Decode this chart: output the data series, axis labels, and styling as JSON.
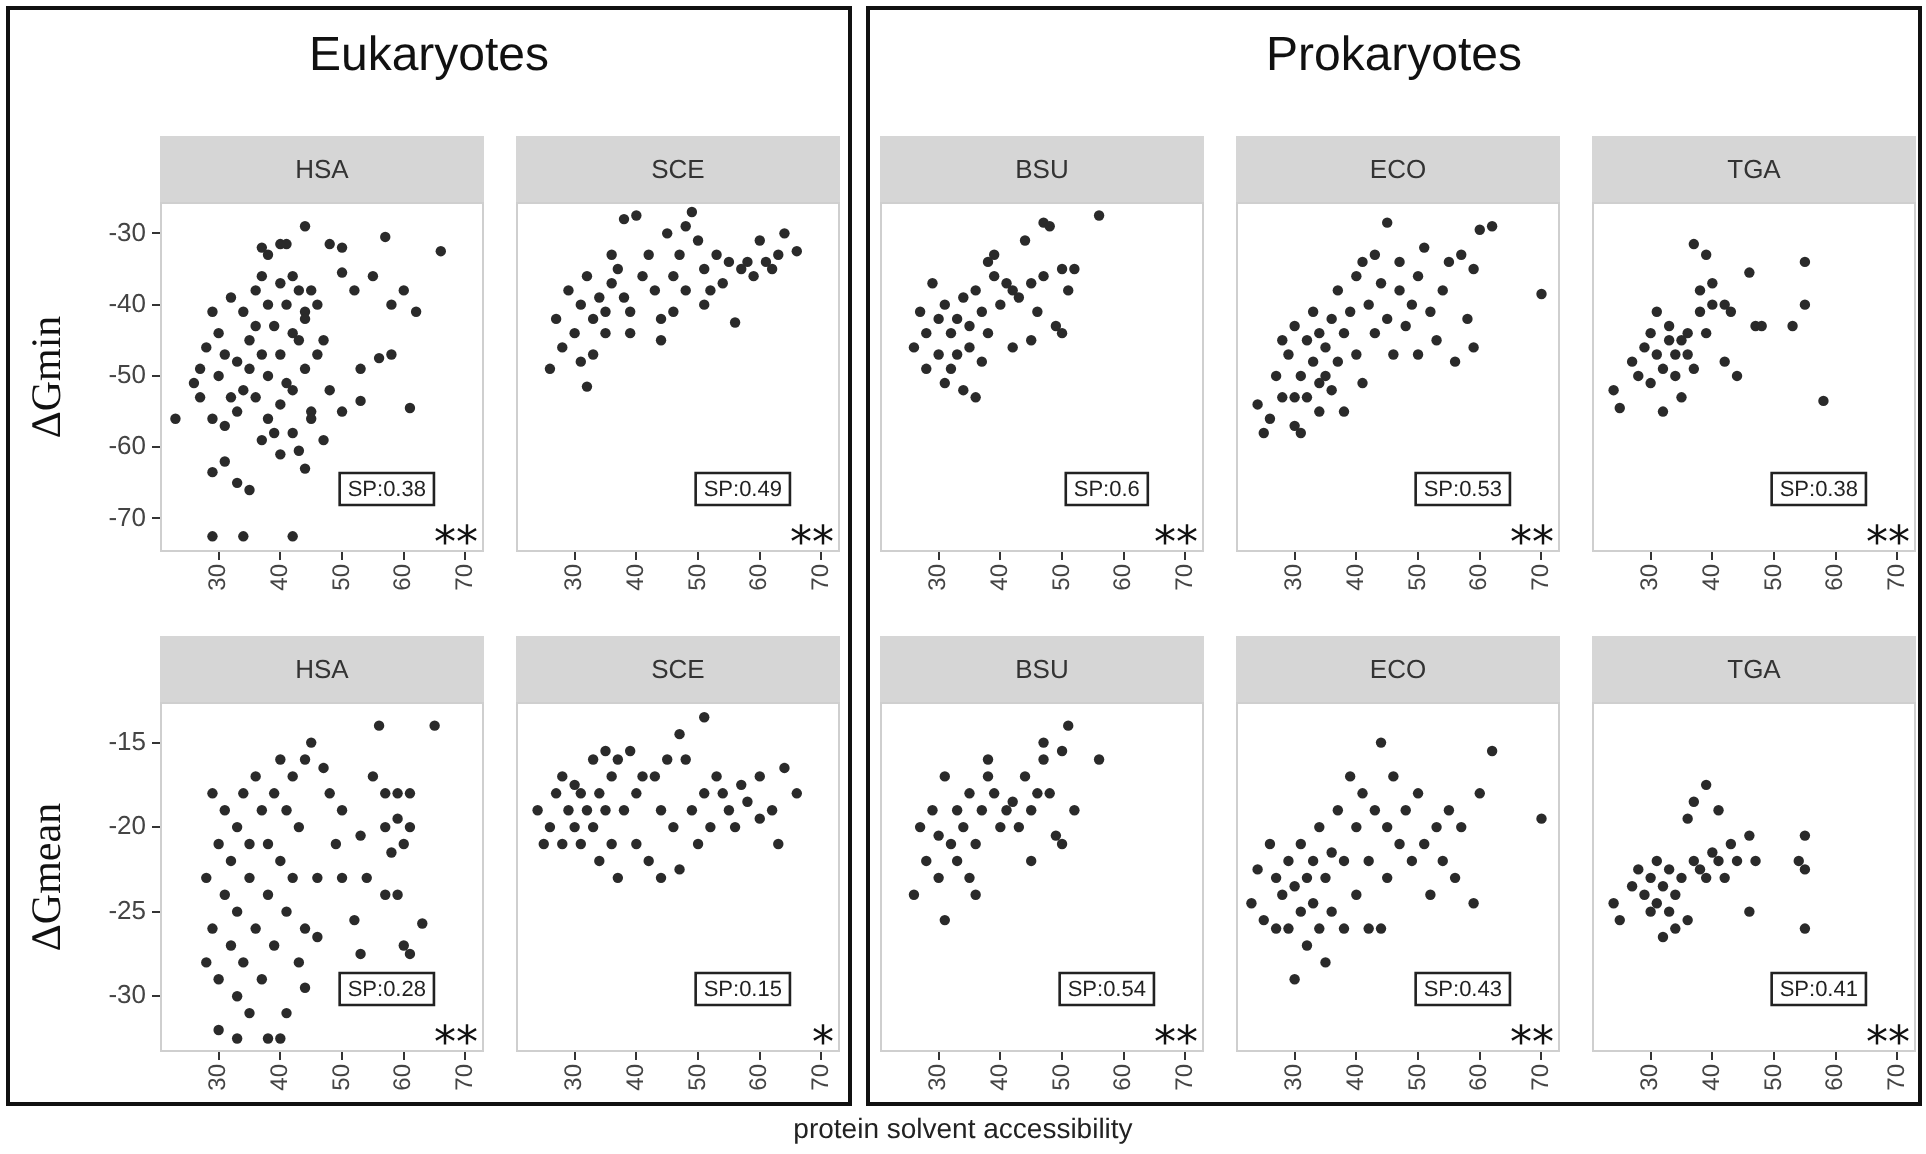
{
  "chart_data": [
    {
      "type": "scatter",
      "title": "Eukaryotes",
      "subtitle": "HSA",
      "ylabel": "ΔGmin",
      "annotations": [
        "SP:0.38",
        "**"
      ],
      "marker": "circle",
      "xlim": [
        20.5,
        73
      ],
      "xticks": [
        30,
        40,
        50,
        60,
        70
      ],
      "ylim": [
        -74.7,
        -25.6
      ],
      "yticks": [
        -70,
        -60,
        -50,
        -40,
        -30
      ],
      "series": [
        {
          "color": "#2a2a2a",
          "x": [
            29,
            30,
            31,
            30,
            32,
            29,
            31,
            33,
            34,
            33,
            35,
            34,
            36,
            37,
            38,
            36,
            37,
            38,
            36,
            38,
            39,
            40,
            41,
            40,
            42,
            41,
            40,
            42,
            43,
            44,
            43,
            44,
            42,
            45,
            39,
            35,
            32,
            28,
            27,
            37,
            40,
            45,
            46,
            29,
            34,
            42,
            29,
            33,
            35,
            44,
            23,
            44,
            48,
            50,
            57,
            66,
            62,
            60,
            58,
            61,
            58,
            56,
            53,
            50,
            53,
            48,
            46,
            55,
            52,
            47,
            44,
            50,
            41,
            38,
            43,
            40,
            37,
            31,
            26,
            27,
            47,
            45,
            42
          ],
          "values": [
            -41,
            -44,
            -47,
            -50,
            -53,
            -56,
            -57,
            -55,
            -52,
            -48,
            -45,
            -41,
            -38,
            -36,
            -40,
            -43,
            -47,
            -50,
            -53,
            -56,
            -58,
            -54,
            -51,
            -47,
            -44,
            -40,
            -37,
            -36,
            -38,
            -41,
            -45,
            -49,
            -52,
            -55,
            -43,
            -49,
            -39,
            -46,
            -53,
            -32,
            -31.5,
            -38,
            -40,
            -72.5,
            -72.5,
            -72.5,
            -63.5,
            -65,
            -66,
            -63,
            -56,
            -29,
            -31.5,
            -32,
            -30.5,
            -32.5,
            -41,
            -38,
            -40,
            -54.5,
            -47,
            -47.5,
            -49,
            -55,
            -53.5,
            -52,
            -47,
            -36,
            -38,
            -45,
            -42,
            -35.5,
            -31.5,
            -33,
            -60.5,
            -61,
            -59,
            -62,
            -51,
            -49,
            -59,
            -56,
            -58
          ]
        }
      ]
    },
    {
      "type": "scatter",
      "subtitle": "SCE",
      "annotations": [
        "SP:0.49",
        "**"
      ],
      "marker": "circle",
      "tick_labels": "x",
      "xlim": [
        20.5,
        73
      ],
      "xticks": [
        30,
        40,
        50,
        60,
        70
      ],
      "ylim": [
        -74.7,
        -25.6
      ],
      "yticks": [
        -70,
        -60,
        -50,
        -40,
        -30
      ],
      "series": [
        {
          "color": "#2a2a2a",
          "x": [
            26,
            27,
            28,
            29,
            30,
            31,
            32,
            31,
            32,
            33,
            33,
            34,
            35,
            36,
            35,
            36,
            37,
            38,
            39,
            38,
            40,
            39,
            41,
            42,
            43,
            44,
            44,
            45,
            46,
            47,
            48,
            49,
            48,
            50,
            51,
            51,
            52,
            53,
            54,
            55,
            56,
            57,
            58,
            60,
            61,
            62,
            63,
            64,
            66,
            59,
            46
          ],
          "values": [
            -49,
            -42,
            -46,
            -38,
            -44,
            -40,
            -36,
            -48,
            -51.5,
            -47,
            -42,
            -39,
            -41,
            -37,
            -44,
            -33,
            -35,
            -39,
            -41,
            -28,
            -27.5,
            -44,
            -36,
            -33,
            -38,
            -42,
            -45,
            -30,
            -36,
            -33,
            -29,
            -27,
            -38,
            -31,
            -35,
            -40,
            -38,
            -33,
            -37,
            -34,
            -42.5,
            -35,
            -34,
            -31,
            -34,
            -35,
            -33,
            -30,
            -32.5,
            -36,
            -41
          ]
        }
      ]
    },
    {
      "type": "scatter",
      "subtitle": "BSU",
      "annotations": [
        "SP:0.6",
        "**"
      ],
      "marker": "circle",
      "tick_labels": "x",
      "xlim": [
        20.5,
        73
      ],
      "xticks": [
        30,
        40,
        50,
        60,
        70
      ],
      "ylim": [
        -74.7,
        -25.6
      ],
      "yticks": [
        -70,
        -60,
        -50,
        -40,
        -30
      ],
      "series": [
        {
          "color": "#2a2a2a",
          "x": [
            26,
            27,
            28,
            28,
            29,
            30,
            30,
            31,
            31,
            32,
            33,
            33,
            34,
            34,
            35,
            35,
            36,
            36,
            37,
            38,
            38,
            39,
            39,
            40,
            41,
            42,
            42,
            43,
            44,
            45,
            45,
            46,
            47,
            47,
            48,
            49,
            50,
            50,
            51,
            52,
            56,
            32,
            37
          ],
          "values": [
            -46,
            -41,
            -44,
            -49,
            -37,
            -42,
            -47,
            -40,
            -51,
            -44,
            -42,
            -47,
            -39,
            -52,
            -43,
            -46,
            -38,
            -53,
            -41,
            -34,
            -44,
            -36,
            -33,
            -40,
            -37,
            -38,
            -46,
            -39,
            -31,
            -37,
            -45,
            -41,
            -36,
            -28.5,
            -29,
            -43,
            -44,
            -35,
            -38,
            -35,
            -27.5,
            -49,
            -48
          ]
        }
      ]
    },
    {
      "type": "scatter",
      "title": "Prokaryotes",
      "subtitle": "ECO",
      "annotations": [
        "SP:0.53",
        "**"
      ],
      "marker": "circle",
      "tick_labels": "x",
      "xlim": [
        20.5,
        73
      ],
      "xticks": [
        30,
        40,
        50,
        60,
        70
      ],
      "ylim": [
        -74.7,
        -25.6
      ],
      "yticks": [
        -70,
        -60,
        -50,
        -40,
        -30
      ],
      "series": [
        {
          "color": "#2a2a2a",
          "x": [
            24,
            25,
            27,
            28,
            28,
            29,
            30,
            30,
            31,
            31,
            32,
            32,
            33,
            33,
            34,
            34,
            35,
            35,
            36,
            36,
            37,
            37,
            38,
            38,
            39,
            40,
            40,
            41,
            41,
            42,
            43,
            43,
            44,
            45,
            45,
            46,
            47,
            47,
            48,
            49,
            50,
            50,
            51,
            52,
            53,
            54,
            55,
            56,
            57,
            58,
            59,
            59,
            60,
            62,
            70,
            30,
            34,
            26
          ],
          "values": [
            -54,
            -58,
            -50,
            -45,
            -53,
            -47,
            -43,
            -57,
            -50,
            -58,
            -45,
            -53,
            -48,
            -41,
            -44,
            -55,
            -50,
            -46,
            -42,
            -52,
            -48,
            -38,
            -44,
            -55,
            -41,
            -36,
            -47,
            -34,
            -51,
            -40,
            -44,
            -33,
            -37,
            -28.5,
            -42,
            -47,
            -38,
            -34,
            -43,
            -40,
            -36,
            -47,
            -32,
            -41,
            -45,
            -38,
            -34,
            -48,
            -33,
            -42,
            -35,
            -46,
            -29.5,
            -29,
            -38.5,
            -53,
            -51,
            -56
          ]
        }
      ]
    },
    {
      "type": "scatter",
      "subtitle": "TGA",
      "annotations": [
        "SP:0.38",
        "**"
      ],
      "marker": "circle",
      "tick_labels": "x",
      "xlim": [
        20.5,
        73
      ],
      "xticks": [
        30,
        40,
        50,
        60,
        70
      ],
      "ylim": [
        -74.7,
        -25.6
      ],
      "yticks": [
        -70,
        -60,
        -50,
        -40,
        -30
      ],
      "series": [
        {
          "color": "#2a2a2a",
          "x": [
            24,
            25,
            27,
            28,
            29,
            30,
            30,
            31,
            31,
            32,
            32,
            33,
            33,
            34,
            34,
            35,
            35,
            36,
            37,
            37,
            38,
            38,
            39,
            39,
            40,
            42,
            42,
            43,
            44,
            46,
            47,
            48,
            53,
            55,
            55,
            58,
            36,
            40
          ],
          "values": [
            -52,
            -54.5,
            -48,
            -50,
            -46,
            -44,
            -51,
            -47,
            -41,
            -49,
            -55,
            -45,
            -43,
            -50,
            -47,
            -53,
            -45,
            -44,
            -31.5,
            -49,
            -41,
            -38,
            -33,
            -44,
            -40,
            -48,
            -40,
            -41,
            -50,
            -35.5,
            -43,
            -43,
            -43,
            -34,
            -40,
            -53.5,
            -47,
            -37
          ]
        }
      ]
    },
    {
      "type": "scatter",
      "subtitle": "HSA",
      "ylabel": "ΔGmean",
      "annotations": [
        "SP:0.28",
        "**"
      ],
      "marker": "circle",
      "xlim": [
        20.5,
        73
      ],
      "xticks": [
        30,
        40,
        50,
        60,
        70
      ],
      "ylim": [
        -33.3,
        -12.6
      ],
      "yticks": [
        -30,
        -25,
        -20,
        -15
      ],
      "series": [
        {
          "color": "#2a2a2a",
          "x": [
            28,
            30,
            33,
            38,
            40,
            41,
            44,
            46,
            52,
            53,
            57,
            59,
            60,
            61,
            63,
            58,
            60,
            57,
            59,
            61,
            55,
            57,
            59,
            61,
            56,
            65,
            45,
            47,
            48,
            50,
            49,
            50,
            53,
            54,
            46,
            29,
            28,
            29,
            30,
            30,
            31,
            31,
            32,
            32,
            33,
            33,
            34,
            34,
            35,
            35,
            36,
            36,
            37,
            37,
            38,
            38,
            39,
            39,
            40,
            40,
            41,
            41,
            42,
            42,
            43,
            43,
            44,
            44,
            33,
            35
          ],
          "values": [
            -28,
            -32,
            -32.5,
            -32.5,
            -32.5,
            -31,
            -29.5,
            -26.5,
            -25.5,
            -27.5,
            -24,
            -24,
            -27,
            -27.5,
            -25.7,
            -21.5,
            -21,
            -20,
            -19.5,
            -20,
            -17,
            -18,
            -18,
            -18,
            -14,
            -14,
            -15,
            -16.5,
            -18,
            -19,
            -21,
            -23,
            -20.5,
            -23,
            -23,
            -18,
            -23,
            -26,
            -21,
            -29,
            -24,
            -19,
            -27,
            -22,
            -20,
            -25,
            -28,
            -18,
            -23,
            -21,
            -26,
            -17,
            -19,
            -29,
            -24,
            -21,
            -18,
            -27,
            -16,
            -22,
            -25,
            -19,
            -17,
            -23,
            -28,
            -20,
            -26,
            -16,
            -30,
            -31
          ]
        }
      ]
    },
    {
      "type": "scatter",
      "subtitle": "SCE",
      "annotations": [
        "SP:0.15",
        "*"
      ],
      "marker": "circle",
      "tick_labels": "x",
      "xlim": [
        20.5,
        73
      ],
      "xticks": [
        30,
        40,
        50,
        60,
        70
      ],
      "ylim": [
        -33.3,
        -12.6
      ],
      "yticks": [
        -30,
        -25,
        -20,
        -15
      ],
      "series": [
        {
          "color": "#2a2a2a",
          "x": [
            24,
            25,
            26,
            27,
            28,
            28,
            29,
            30,
            30,
            31,
            31,
            32,
            33,
            33,
            34,
            34,
            35,
            35,
            36,
            36,
            37,
            37,
            38,
            39,
            40,
            40,
            41,
            42,
            43,
            44,
            44,
            45,
            46,
            47,
            47,
            48,
            49,
            50,
            51,
            51,
            52,
            53,
            54,
            55,
            56,
            57,
            58,
            60,
            60,
            62,
            63,
            64,
            66
          ],
          "values": [
            -19,
            -21,
            -20,
            -18,
            -17,
            -21,
            -19,
            -20,
            -17.5,
            -18,
            -21,
            -19,
            -16,
            -20,
            -18,
            -22,
            -15.5,
            -19,
            -17,
            -21,
            -23,
            -16,
            -19,
            -15.5,
            -18,
            -21,
            -17,
            -22,
            -17,
            -23,
            -19,
            -16,
            -20,
            -14.5,
            -22.5,
            -16,
            -19,
            -21,
            -13.5,
            -18,
            -20,
            -17,
            -18,
            -19,
            -20,
            -17.5,
            -18.5,
            -17,
            -19.5,
            -19,
            -21,
            -16.5,
            -18
          ]
        }
      ]
    },
    {
      "type": "scatter",
      "subtitle": "BSU",
      "xlabel": "protein solvent accessibility",
      "annotations": [
        "SP:0.54",
        "**"
      ],
      "marker": "circle",
      "tick_labels": "x",
      "xlim": [
        20.5,
        73
      ],
      "xticks": [
        30,
        40,
        50,
        60,
        70
      ],
      "ylim": [
        -33.3,
        -12.6
      ],
      "yticks": [
        -30,
        -25,
        -20,
        -15
      ],
      "series": [
        {
          "color": "#2a2a2a",
          "x": [
            26,
            27,
            28,
            29,
            30,
            30,
            31,
            31,
            32,
            33,
            33,
            34,
            35,
            35,
            36,
            36,
            37,
            38,
            38,
            39,
            40,
            41,
            42,
            43,
            44,
            45,
            45,
            46,
            47,
            47,
            48,
            49,
            50,
            50,
            51,
            52,
            56
          ],
          "values": [
            -24,
            -20,
            -22,
            -19,
            -23,
            -20.5,
            -17,
            -25.5,
            -21,
            -19,
            -22,
            -20,
            -18,
            -23,
            -21,
            -24,
            -19,
            -17,
            -16,
            -18,
            -20,
            -19,
            -18.5,
            -20,
            -17,
            -19,
            -22,
            -18,
            -16,
            -15,
            -18,
            -20.5,
            -15.5,
            -21,
            -14,
            -19,
            -16
          ]
        }
      ]
    },
    {
      "type": "scatter",
      "subtitle": "ECO",
      "annotations": [
        "SP:0.43",
        "**"
      ],
      "marker": "circle",
      "tick_labels": "x",
      "xlim": [
        20.5,
        73
      ],
      "xticks": [
        30,
        40,
        50,
        60,
        70
      ],
      "ylim": [
        -33.3,
        -12.6
      ],
      "yticks": [
        -30,
        -25,
        -20,
        -15
      ],
      "series": [
        {
          "color": "#2a2a2a",
          "x": [
            23,
            24,
            25,
            26,
            27,
            27,
            28,
            29,
            29,
            30,
            30,
            31,
            31,
            32,
            32,
            33,
            33,
            34,
            34,
            35,
            35,
            36,
            36,
            37,
            38,
            38,
            39,
            40,
            40,
            41,
            42,
            42,
            43,
            44,
            45,
            45,
            46,
            47,
            48,
            49,
            50,
            51,
            52,
            53,
            54,
            55,
            56,
            57,
            59,
            60,
            62,
            70,
            44
          ],
          "values": [
            -24.5,
            -22.5,
            -25.5,
            -21,
            -23,
            -26,
            -24,
            -22,
            -26,
            -23.5,
            -29,
            -21,
            -25,
            -23,
            -27,
            -22,
            -24.5,
            -20,
            -26,
            -23,
            -28,
            -21.5,
            -25,
            -19,
            -22,
            -26,
            -17,
            -20,
            -24,
            -18,
            -22,
            -26,
            -19,
            -15,
            -20,
            -23,
            -17,
            -21,
            -19,
            -22,
            -18,
            -21,
            -24,
            -20,
            -22,
            -19,
            -23,
            -20,
            -24.5,
            -18,
            -15.5,
            -19.5,
            -26
          ]
        }
      ]
    },
    {
      "type": "scatter",
      "subtitle": "TGA",
      "annotations": [
        "SP:0.41",
        "**"
      ],
      "marker": "circle",
      "tick_labels": "x",
      "xlim": [
        20.5,
        73
      ],
      "xticks": [
        30,
        40,
        50,
        60,
        70
      ],
      "ylim": [
        -33.3,
        -12.6
      ],
      "yticks": [
        -30,
        -25,
        -20,
        -15
      ],
      "series": [
        {
          "color": "#2a2a2a",
          "x": [
            24,
            25,
            27,
            28,
            29,
            30,
            30,
            31,
            31,
            32,
            33,
            33,
            34,
            34,
            35,
            36,
            37,
            37,
            38,
            39,
            39,
            40,
            41,
            41,
            42,
            43,
            44,
            46,
            46,
            47,
            54,
            55,
            55,
            55,
            36,
            32
          ],
          "values": [
            -24.5,
            -25.5,
            -23.5,
            -22.5,
            -24,
            -23,
            -25,
            -22,
            -24.5,
            -23.5,
            -22.5,
            -25,
            -24,
            -26,
            -23,
            -19.5,
            -22,
            -18.5,
            -22.5,
            -17.5,
            -23,
            -21.5,
            -19,
            -22,
            -23,
            -21,
            -22,
            -20.5,
            -25,
            -22,
            -22,
            -20.5,
            -22.5,
            -26,
            -25.5,
            -26.5
          ]
        }
      ]
    }
  ]
}
